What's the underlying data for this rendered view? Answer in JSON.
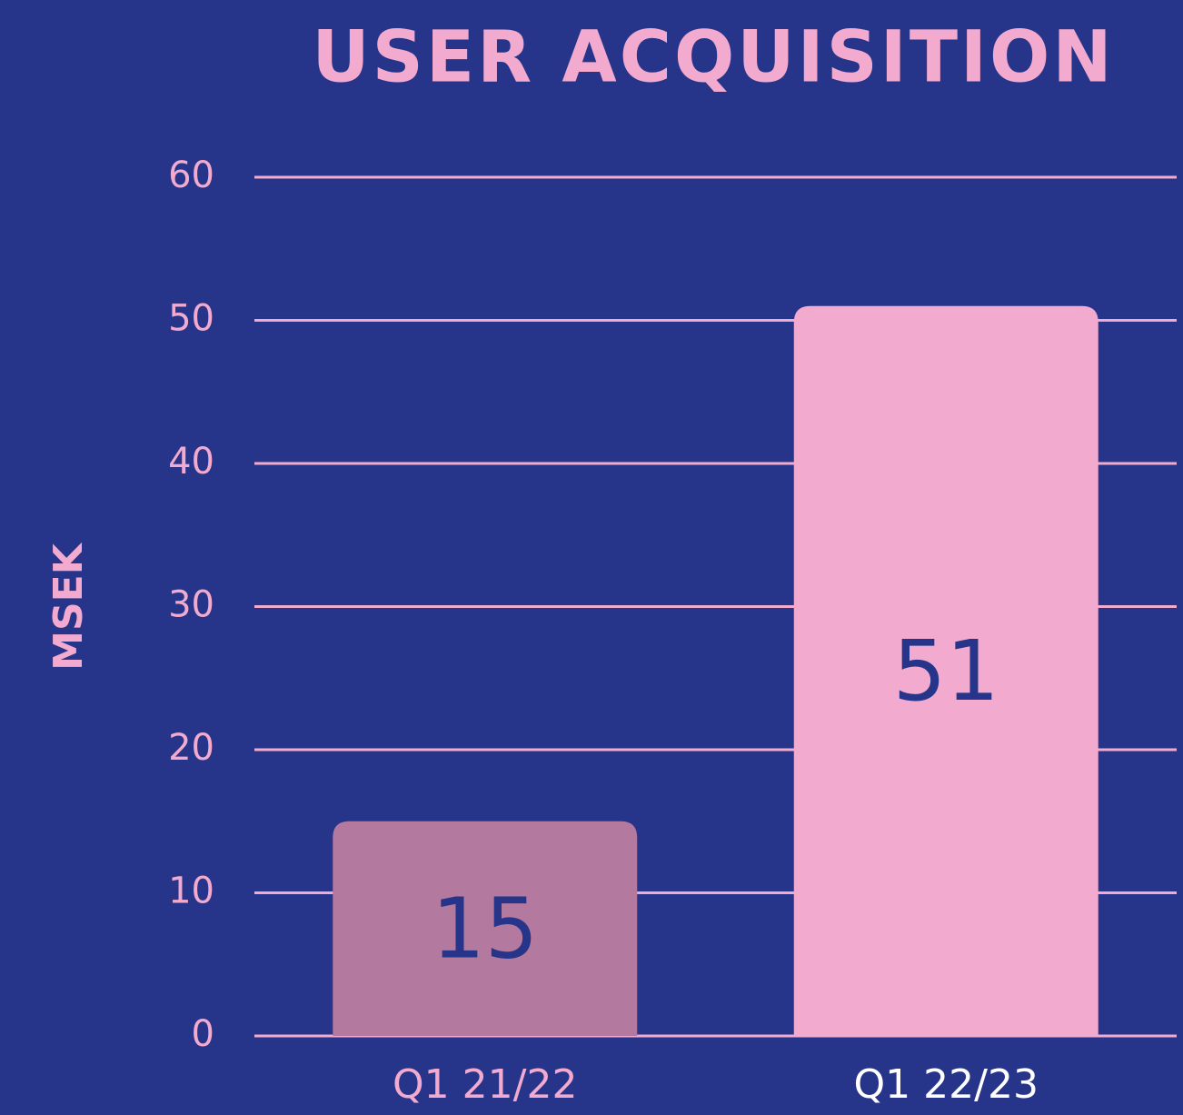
{
  "chart_data": {
    "type": "bar",
    "title": "USER ACQUISITION",
    "y_label": "MSEK",
    "categories": [
      "Q1 21/22",
      "Q1 22/23"
    ],
    "values": [
      15,
      51
    ],
    "colors": [
      "#b3799e",
      "#f2abcf"
    ],
    "category_label_colors": [
      "#f2abcf",
      "#ffffff"
    ],
    "ylim": [
      0,
      60
    ],
    "yticks": [
      0,
      10,
      20,
      30,
      40,
      50,
      60
    ],
    "grid": true
  }
}
